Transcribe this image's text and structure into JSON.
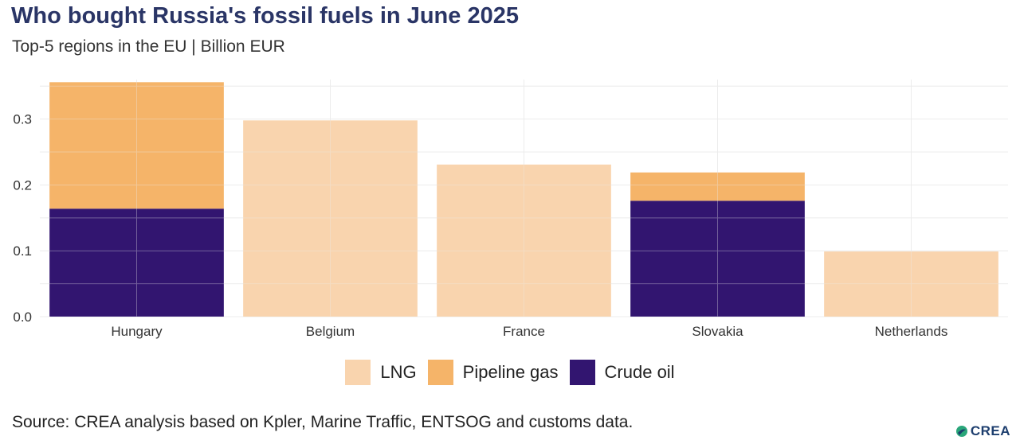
{
  "header": {
    "title": "Who bought Russia's fossil fuels in June 2025",
    "subtitle": "Top-5 regions in the EU | Billion EUR"
  },
  "footer": {
    "source": "Source: CREA analysis based on Kpler, Marine Traffic, ENTSOG and customs data.",
    "logo_text": "CREA"
  },
  "colors": {
    "lng": "#f9d4ae",
    "pipeline_gas": "#f5b469",
    "crude_oil": "#321570",
    "grid": "#ececec"
  },
  "chart_data": {
    "type": "bar",
    "stacked": true,
    "title": "Who bought Russia's fossil fuels in June 2025",
    "subtitle": "Top-5 regions in the EU | Billion EUR",
    "xlabel": "",
    "ylabel": "",
    "categories": [
      "Hungary",
      "Belgium",
      "France",
      "Slovakia",
      "Netherlands"
    ],
    "series": [
      {
        "name": "LNG",
        "color": "#f9d4ae",
        "values": [
          0,
          0.298,
          0.231,
          0,
          0.099
        ]
      },
      {
        "name": "Pipeline gas",
        "color": "#f5b469",
        "values": [
          0.192,
          0,
          0,
          0.043,
          0
        ]
      },
      {
        "name": "Crude oil",
        "color": "#321570",
        "values": [
          0.164,
          0,
          0,
          0.176,
          0
        ]
      }
    ],
    "stack_order_bottom_to_top": [
      "Crude oil",
      "Pipeline gas",
      "LNG"
    ],
    "ylim": [
      0,
      0.36
    ],
    "yticks": [
      0.0,
      0.1,
      0.2,
      0.3
    ],
    "ytick_labels": [
      "0.0",
      "0.1",
      "0.2",
      "0.3"
    ],
    "grid": true,
    "legend_position": "bottom-center"
  }
}
